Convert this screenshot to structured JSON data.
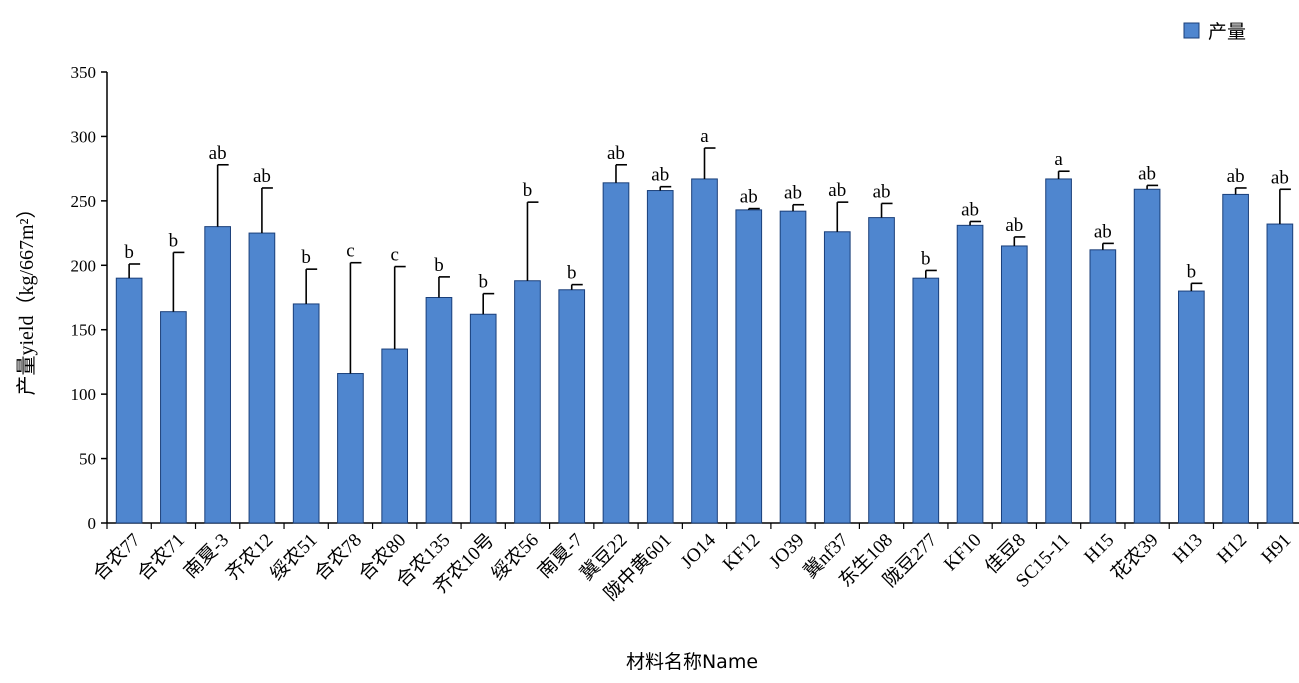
{
  "chart_data": {
    "type": "bar",
    "xlabel": "材料名称Name",
    "ylabel": "产量yield（kg/667m²）",
    "ylim": [
      0,
      350
    ],
    "yticks": [
      0,
      50,
      100,
      150,
      200,
      250,
      300,
      350
    ],
    "legend": {
      "position": "top-right"
    },
    "grid": false,
    "bar_color": "#4f86cf",
    "bar_edge_color": "#1a3f7a",
    "categories": [
      "合农77",
      "合农71",
      "南夏-3",
      "齐农12",
      "绥农51",
      "合农78",
      "合农80",
      "合农135",
      "齐农10号",
      "绥农56",
      "南夏-7",
      "冀豆22",
      "陇中黄601",
      "JO14",
      "KF12",
      "JO39",
      "冀nf37",
      "东生108",
      "陇豆277",
      "KF10",
      "佳豆8",
      "SC15-11",
      "H15",
      "花农39",
      "H13",
      "H12",
      "H91"
    ],
    "category_colors": [
      "#000000",
      "#000000",
      "#7a2a4a",
      "#000000",
      "#000000",
      "#000000",
      "#000000",
      "#000000",
      "#000000",
      "#000000",
      "#7a2a4a",
      "#2f6b2f",
      "#2f6b2f",
      "#000000",
      "#000000",
      "#000000",
      "#2f6b2f",
      "#000000",
      "#2f6b2f",
      "#000000",
      "#2f6b2f",
      "#000000",
      "#000000",
      "#000000",
      "#000000",
      "#000000",
      "#000000"
    ],
    "series": [
      {
        "name": "产量",
        "values": [
          190,
          164,
          230,
          225,
          170,
          116,
          135,
          175,
          162,
          188,
          181,
          264,
          258,
          267,
          243,
          242,
          226,
          237,
          190,
          231,
          215,
          267,
          212,
          259,
          180,
          255,
          232
        ],
        "errors": [
          11,
          46,
          48,
          35,
          27,
          86,
          64,
          16,
          16,
          61,
          4,
          14,
          3,
          24,
          1,
          5,
          23,
          11,
          6,
          3,
          7,
          6,
          5,
          3,
          6,
          5,
          27
        ]
      }
    ],
    "significance": [
      "b",
      "b",
      "ab",
      "ab",
      "b",
      "c",
      "c",
      "b",
      "b",
      "b",
      "b",
      "ab",
      "ab",
      "a",
      "ab",
      "ab",
      "ab",
      "ab",
      "b",
      "ab",
      "ab",
      "a",
      "ab",
      "ab",
      "b",
      "ab",
      "ab"
    ]
  }
}
